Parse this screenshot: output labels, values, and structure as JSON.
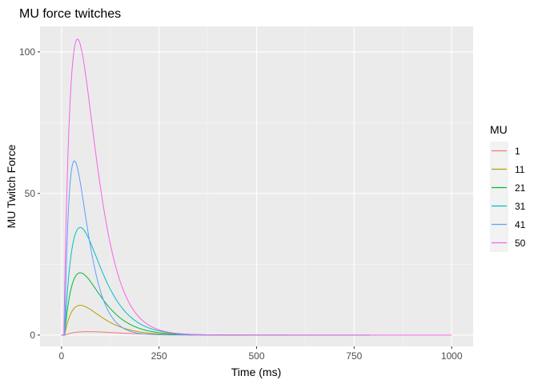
{
  "chart_data": {
    "type": "line",
    "title": "MU force twitches",
    "xlabel": "Time (ms)",
    "ylabel": "MU Twitch Force",
    "xlim": [
      -55,
      1055
    ],
    "ylim": [
      -4,
      109
    ],
    "x_ticks": [
      0,
      250,
      500,
      750,
      1000
    ],
    "y_ticks": [
      0,
      50,
      100
    ],
    "x_tick_labels": [
      "0",
      "250",
      "500",
      "750",
      "1000"
    ],
    "y_tick_labels": [
      "0",
      "50",
      "100"
    ],
    "grid": true,
    "legend": {
      "title": "MU",
      "placement": "right",
      "entries": [
        "1",
        "11",
        "21",
        "31",
        "41",
        "50"
      ]
    },
    "series": [
      {
        "name": "1",
        "color": "#F8766D",
        "onset": 8,
        "peak": 1.2,
        "peak_time": 60,
        "end": 320
      },
      {
        "name": "11",
        "color": "#B79F00",
        "onset": 8,
        "peak": 10.5,
        "peak_time": 40,
        "end": 580
      },
      {
        "name": "21",
        "color": "#00BA38",
        "onset": 8,
        "peak": 22.0,
        "peak_time": 40,
        "end": 580
      },
      {
        "name": "31",
        "color": "#00BFC4",
        "onset": 8,
        "peak": 38.0,
        "peak_time": 40,
        "end": 790
      },
      {
        "name": "41",
        "color": "#619CFF",
        "onset": 8,
        "peak": 61.5,
        "peak_time": 25,
        "end": 790
      },
      {
        "name": "50",
        "color": "#F564E3",
        "onset": 6,
        "peak": 104.5,
        "peak_time": 35,
        "end": 1000
      }
    ]
  }
}
